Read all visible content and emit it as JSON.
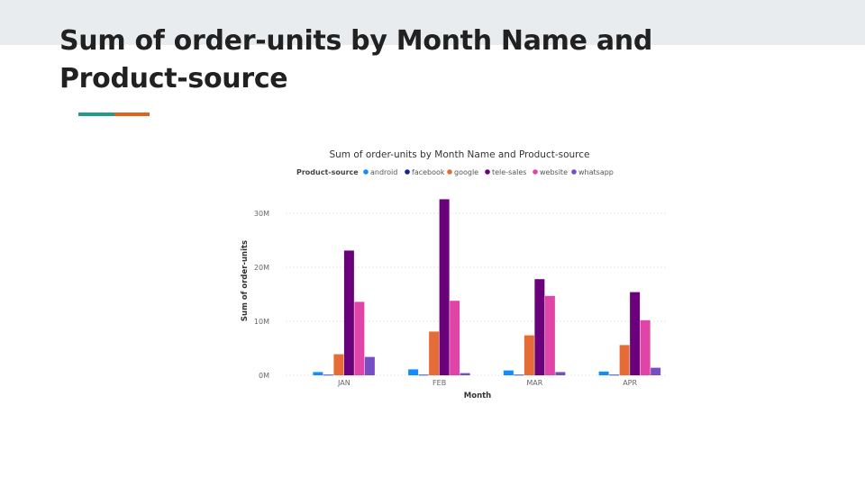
{
  "slide": {
    "title": "Sum of order-units by Month Name and Product-source"
  },
  "colors": {
    "band": "#e9ecee",
    "title": "#212121",
    "accent_teal": "#1f9c8c",
    "accent_orange": "#e0621d"
  },
  "chart_data": {
    "type": "bar",
    "title": "Sum of order-units by Month Name and Product-source",
    "legend_title": "Product-source",
    "legend_position": "top",
    "xlabel": "Month",
    "ylabel": "Sum of order-units",
    "categories": [
      "JAN",
      "FEB",
      "MAR",
      "APR"
    ],
    "ylim": [
      0,
      30000000
    ],
    "yticks": [
      0,
      10000000,
      20000000,
      30000000
    ],
    "ytick_labels": [
      "0M",
      "10M",
      "20M",
      "30M"
    ],
    "grid": true,
    "series": [
      {
        "name": "android",
        "color": "#118dff",
        "values": [
          600000,
          1100000,
          900000,
          700000
        ]
      },
      {
        "name": "facebook",
        "color": "#12239e",
        "values": [
          100000,
          100000,
          100000,
          100000
        ]
      },
      {
        "name": "google",
        "color": "#e66c37",
        "values": [
          3900000,
          8100000,
          7400000,
          5600000
        ]
      },
      {
        "name": "tele-sales",
        "color": "#6b007b",
        "values": [
          23100000,
          32600000,
          17800000,
          15400000
        ]
      },
      {
        "name": "website",
        "color": "#e044a7",
        "values": [
          13600000,
          13800000,
          14700000,
          10200000
        ]
      },
      {
        "name": "whatsapp",
        "color": "#744ec2",
        "values": [
          3400000,
          400000,
          600000,
          1400000
        ]
      }
    ]
  }
}
